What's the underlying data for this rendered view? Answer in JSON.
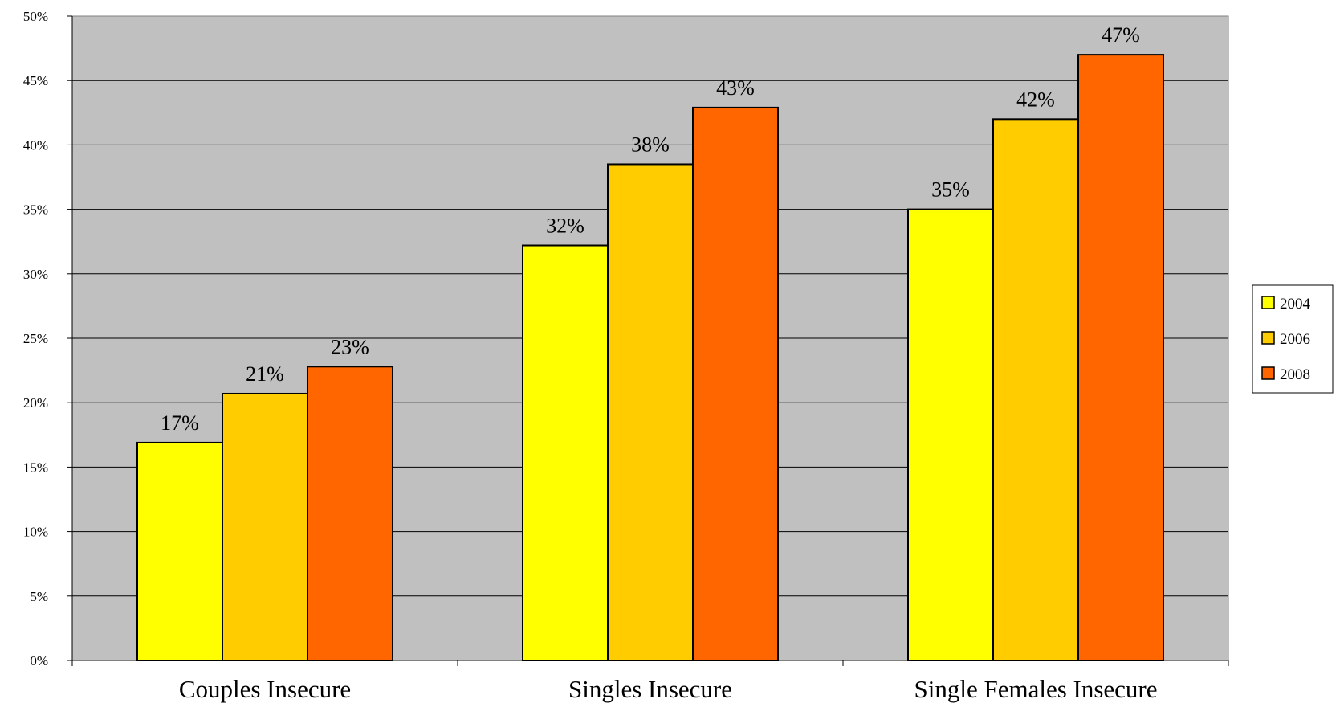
{
  "chart_data": {
    "type": "bar",
    "categories": [
      "Couples Insecure",
      "Singles Insecure",
      "Single Females Insecure"
    ],
    "series": [
      {
        "name": "2004",
        "color": "#FFFF00",
        "values": [
          16.9,
          32.2,
          35.0
        ],
        "labels": [
          "17%",
          "32%",
          "35%"
        ]
      },
      {
        "name": "2006",
        "color": "#FFCC00",
        "values": [
          20.7,
          38.5,
          42.0
        ],
        "labels": [
          "21%",
          "38%",
          "42%"
        ]
      },
      {
        "name": "2008",
        "color": "#FF6600",
        "values": [
          22.8,
          42.9,
          47.0
        ],
        "labels": [
          "23%",
          "43%",
          "47%"
        ]
      }
    ],
    "ylim": [
      0,
      50
    ],
    "yticks": [
      "0%",
      "5%",
      "10%",
      "15%",
      "20%",
      "25%",
      "30%",
      "35%",
      "40%",
      "45%",
      "50%"
    ],
    "plot_background": "#C0C0C0",
    "grid": true,
    "legend_position": "right"
  }
}
